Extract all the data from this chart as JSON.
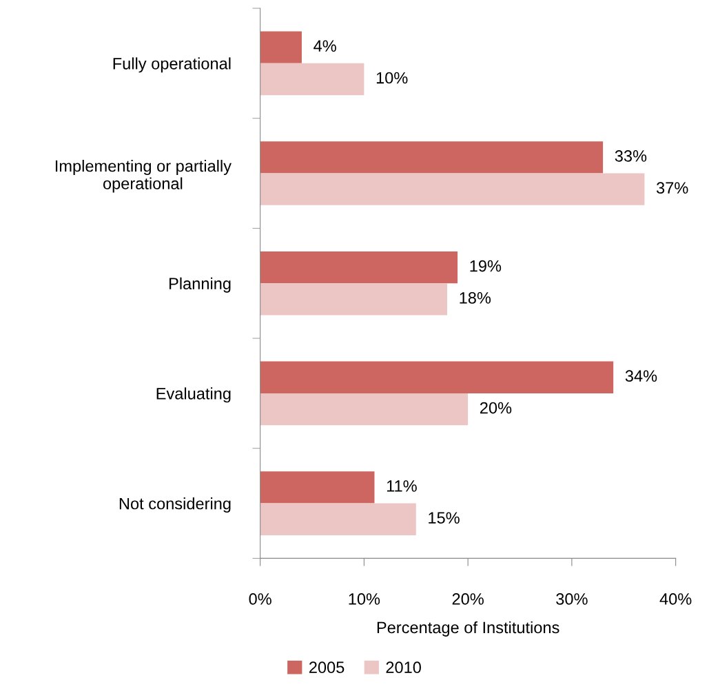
{
  "chart_data": {
    "type": "bar",
    "orientation": "horizontal",
    "categories": [
      "Fully operational",
      "Implementing or partially operational",
      "Planning",
      "Evaluating",
      "Not considering"
    ],
    "series": [
      {
        "name": "2005",
        "color": "#cd6660",
        "values": [
          4,
          33,
          19,
          34,
          11
        ],
        "value_labels": [
          "4%",
          "33%",
          "19%",
          "34%",
          "11%"
        ]
      },
      {
        "name": "2010",
        "color": "#ecc5c5",
        "values": [
          10,
          37,
          18,
          20,
          15
        ],
        "value_labels": [
          "10%",
          "37%",
          "18%",
          "20%",
          "15%"
        ]
      }
    ],
    "xlabel": "Percentage of Institutions",
    "xlim": [
      0,
      40
    ],
    "xticks": [
      {
        "value": 0,
        "label": "0%"
      },
      {
        "value": 10,
        "label": "10%"
      },
      {
        "value": 20,
        "label": "20%"
      },
      {
        "value": 30,
        "label": "30%"
      },
      {
        "value": 40,
        "label": "40%"
      }
    ],
    "grid": false,
    "legend": "bottom"
  }
}
